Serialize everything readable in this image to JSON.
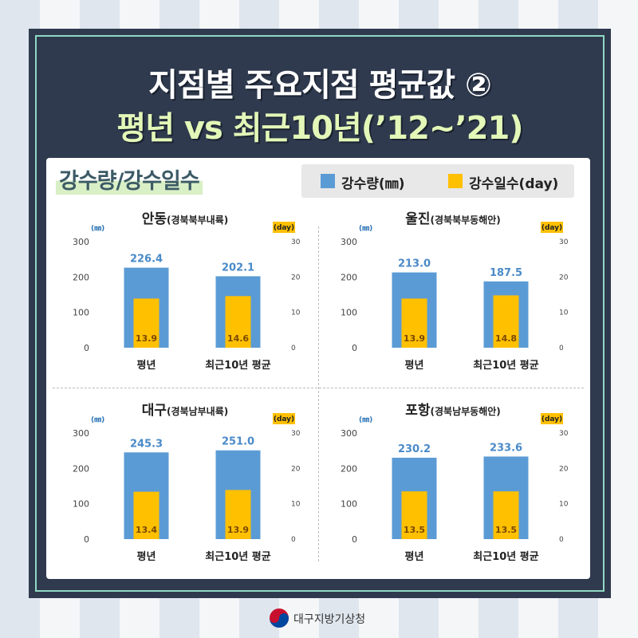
{
  "title_line1": "지점별 주요지점 평균값 ②",
  "title_line2": "평년 vs 최근10년(’12~’21)",
  "section_title": "강수량/강수일수",
  "legend": {
    "precip_label": "강수량(㎜)",
    "days_label": "강수일수(day)"
  },
  "colors": {
    "precip": "#5b9bd5",
    "days": "#ffc000",
    "frame": "#2f3a4e",
    "accent_border": "#8fd8c4"
  },
  "footer": {
    "org": "대구지방기상청"
  },
  "chart_data": [
    {
      "type": "bar",
      "title_main": "안동",
      "title_sub": "(경북북부내륙)",
      "categories": [
        "평년",
        "최근10년 평균"
      ],
      "series": [
        {
          "name": "강수량(㎜)",
          "values": [
            226.4,
            202.1
          ],
          "axis": "left"
        },
        {
          "name": "강수일수(day)",
          "values": [
            13.9,
            14.6
          ],
          "axis": "right"
        }
      ],
      "left_unit": "(㎜)",
      "right_unit": "(day)",
      "ylim_left": [
        0,
        300
      ],
      "yticks_left": [
        0,
        100,
        200,
        300
      ],
      "ylim_right": [
        0,
        30
      ],
      "yticks_right": [
        0,
        10,
        20,
        30
      ]
    },
    {
      "type": "bar",
      "title_main": "울진",
      "title_sub": "(경북북부동해안)",
      "categories": [
        "평년",
        "최근10년 평균"
      ],
      "series": [
        {
          "name": "강수량(㎜)",
          "values": [
            213.0,
            187.5
          ],
          "axis": "left"
        },
        {
          "name": "강수일수(day)",
          "values": [
            13.9,
            14.8
          ],
          "axis": "right"
        }
      ],
      "left_unit": "(㎜)",
      "right_unit": "(day)",
      "ylim_left": [
        0,
        300
      ],
      "yticks_left": [
        0,
        100,
        200,
        300
      ],
      "ylim_right": [
        0,
        30
      ],
      "yticks_right": [
        0,
        10,
        20,
        30
      ]
    },
    {
      "type": "bar",
      "title_main": "대구",
      "title_sub": "(경북남부내륙)",
      "categories": [
        "평년",
        "최근10년 평균"
      ],
      "series": [
        {
          "name": "강수량(㎜)",
          "values": [
            245.3,
            251.0
          ],
          "axis": "left"
        },
        {
          "name": "강수일수(day)",
          "values": [
            13.4,
            13.9
          ],
          "axis": "right"
        }
      ],
      "left_unit": "(㎜)",
      "right_unit": "(day)",
      "ylim_left": [
        0,
        300
      ],
      "yticks_left": [
        0,
        100,
        200,
        300
      ],
      "ylim_right": [
        0,
        30
      ],
      "yticks_right": [
        0,
        10,
        20,
        30
      ]
    },
    {
      "type": "bar",
      "title_main": "포항",
      "title_sub": "(경북남부동해안)",
      "categories": [
        "평년",
        "최근10년 평균"
      ],
      "series": [
        {
          "name": "강수량(㎜)",
          "values": [
            230.2,
            233.6
          ],
          "axis": "left"
        },
        {
          "name": "강수일수(day)",
          "values": [
            13.5,
            13.5
          ],
          "axis": "right"
        }
      ],
      "left_unit": "(㎜)",
      "right_unit": "(day)",
      "ylim_left": [
        0,
        300
      ],
      "yticks_left": [
        0,
        100,
        200,
        300
      ],
      "ylim_right": [
        0,
        30
      ],
      "yticks_right": [
        0,
        10,
        20,
        30
      ]
    }
  ]
}
